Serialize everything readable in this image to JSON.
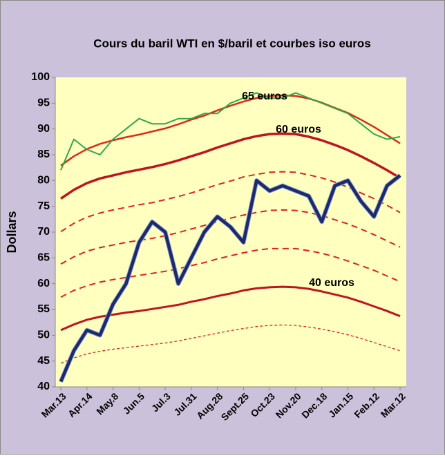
{
  "chart_data": {
    "type": "line",
    "title": "Cours du baril WTI en $/baril et courbes iso euros",
    "ylabel": "Dollars",
    "categories": [
      "Mar.13",
      null,
      "Apr.14",
      null,
      "May.8",
      null,
      "Jun.5",
      null,
      "Jul.3",
      null,
      "Jul.31",
      null,
      "Aug.28",
      null,
      "Sept.25",
      null,
      "Oct.23",
      null,
      "Nov.20",
      null,
      "Dec.18",
      null,
      "Jan.15",
      null,
      "Feb.12",
      null,
      "Mar.12"
    ],
    "ylim": [
      40,
      100
    ],
    "yticks": [
      40,
      45,
      50,
      55,
      60,
      65,
      70,
      75,
      80,
      85,
      90,
      95,
      100
    ],
    "grid": false,
    "annotations": [
      "65 euros",
      "60 euros",
      "40 euros"
    ],
    "series": [
      {
        "color": "#e02818",
        "dashed": false,
        "values": [
          82.9,
          84.7,
          86.1,
          87.1,
          87.8,
          88.4,
          88.9,
          89.5,
          90.1,
          90.9,
          91.8,
          92.6,
          93.6,
          94.5,
          95.3,
          96.0,
          96.4,
          96.5,
          96.4,
          95.9,
          95.1,
          94.1,
          93.1,
          91.8,
          90.4,
          88.8,
          87.2
        ]
      },
      {
        "color": "#c0141c",
        "dashed": false,
        "values": [
          76.5,
          78.2,
          79.5,
          80.4,
          81.0,
          81.6,
          82.1,
          82.6,
          83.2,
          83.9,
          84.7,
          85.5,
          86.4,
          87.2,
          88.0,
          88.6,
          89.0,
          89.1,
          89.0,
          88.5,
          87.8,
          86.9,
          85.9,
          84.7,
          83.4,
          82.0,
          80.5
        ]
      },
      {
        "color": "#e02020",
        "dashed": true,
        "values": [
          70.1,
          71.7,
          72.9,
          73.7,
          74.3,
          74.8,
          75.3,
          75.7,
          76.3,
          76.9,
          77.6,
          78.4,
          79.2,
          79.9,
          80.7,
          81.2,
          81.6,
          81.7,
          81.6,
          81.1,
          80.5,
          79.7,
          78.7,
          77.6,
          76.5,
          75.2,
          73.8
        ]
      },
      {
        "color": "#e02020",
        "dashed": true,
        "values": [
          63.8,
          65.2,
          66.3,
          67.0,
          67.5,
          68.0,
          68.4,
          68.8,
          69.3,
          69.9,
          70.6,
          71.3,
          72.0,
          72.7,
          73.3,
          73.8,
          74.2,
          74.3,
          74.2,
          73.8,
          73.2,
          72.4,
          71.6,
          70.6,
          69.5,
          68.3,
          67.1
        ]
      },
      {
        "color": "#e02020",
        "dashed": true,
        "values": [
          57.4,
          58.7,
          59.6,
          60.3,
          60.8,
          61.2,
          61.6,
          62.0,
          62.4,
          62.9,
          63.5,
          64.1,
          64.8,
          65.4,
          66.0,
          66.5,
          66.8,
          66.8,
          66.8,
          66.4,
          65.9,
          65.2,
          64.4,
          63.5,
          62.6,
          61.5,
          60.4
        ]
      },
      {
        "color": "#c0141c",
        "dashed": false,
        "values": [
          51.0,
          52.1,
          53.0,
          53.6,
          54.0,
          54.4,
          54.7,
          55.1,
          55.5,
          55.9,
          56.5,
          57.0,
          57.6,
          58.1,
          58.7,
          59.1,
          59.3,
          59.4,
          59.3,
          59.0,
          58.5,
          57.9,
          57.3,
          56.5,
          55.6,
          54.7,
          53.7
        ]
      },
      {
        "color": "#e02020",
        "dashed": true,
        "values": [
          44.6,
          45.6,
          46.4,
          46.9,
          47.3,
          47.6,
          47.9,
          48.2,
          48.5,
          48.9,
          49.4,
          49.9,
          50.4,
          50.9,
          51.3,
          51.7,
          51.9,
          52.0,
          51.9,
          51.6,
          51.2,
          50.7,
          50.1,
          49.4,
          48.6,
          47.8,
          47.0
        ]
      },
      {
        "color": "#2ca84a",
        "dashed": false,
        "values": [
          82,
          88,
          86,
          85,
          88,
          90,
          92,
          91,
          91,
          92,
          92,
          93,
          93,
          95,
          96,
          97,
          96,
          96,
          97,
          96,
          95,
          94,
          93,
          91,
          89,
          88,
          88.5
        ]
      },
      {
        "color": "#1c2a6c",
        "dashed": false,
        "values": [
          41,
          47,
          51,
          50,
          56,
          60,
          68,
          72,
          70,
          60,
          65,
          70,
          73,
          71,
          68,
          80,
          78,
          79,
          78,
          77,
          72,
          79,
          80,
          76,
          73,
          79,
          81
        ]
      }
    ]
  }
}
